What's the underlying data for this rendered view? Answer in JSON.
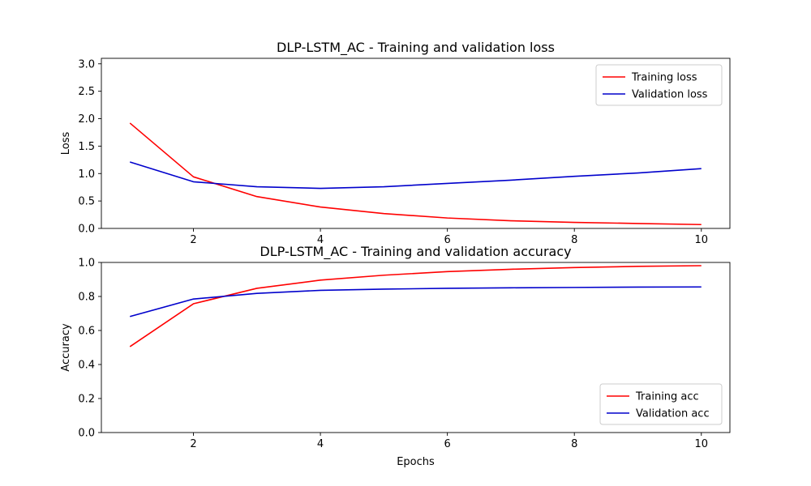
{
  "chart_data": [
    {
      "type": "line",
      "title": "DLP-LSTM_AC - Training and validation loss",
      "xlabel": "",
      "ylabel": "Loss",
      "xlim": [
        0.55,
        10.45
      ],
      "ylim": [
        0,
        3.1
      ],
      "xticks": [
        2,
        4,
        6,
        8,
        10
      ],
      "yticks": [
        0.0,
        0.5,
        1.0,
        1.5,
        2.0,
        2.5,
        3.0
      ],
      "grid": false,
      "legend_position": "upper right",
      "x": [
        1,
        2,
        3,
        4,
        5,
        6,
        7,
        8,
        9,
        10
      ],
      "series": [
        {
          "name": "Training loss",
          "color": "#ff0000",
          "values": [
            1.92,
            0.94,
            0.58,
            0.39,
            0.27,
            0.19,
            0.14,
            0.11,
            0.09,
            0.07
          ]
        },
        {
          "name": "Validation loss",
          "color": "#0000cc",
          "values": [
            1.21,
            0.85,
            0.76,
            0.73,
            0.76,
            0.82,
            0.88,
            0.95,
            1.01,
            1.09
          ]
        }
      ]
    },
    {
      "type": "line",
      "title": "DLP-LSTM_AC - Training and validation accuracy",
      "xlabel": "Epochs",
      "ylabel": "Accuracy",
      "xlim": [
        0.55,
        10.45
      ],
      "ylim": [
        0,
        1.0
      ],
      "xticks": [
        2,
        4,
        6,
        8,
        10
      ],
      "yticks": [
        0.0,
        0.2,
        0.4,
        0.6,
        0.8,
        1.0
      ],
      "grid": false,
      "legend_position": "lower right",
      "x": [
        1,
        2,
        3,
        4,
        5,
        6,
        7,
        8,
        9,
        10
      ],
      "series": [
        {
          "name": "Training acc",
          "color": "#ff0000",
          "values": [
            0.505,
            0.757,
            0.848,
            0.896,
            0.925,
            0.946,
            0.96,
            0.97,
            0.977,
            0.981
          ]
        },
        {
          "name": "Validation acc",
          "color": "#0000cc",
          "values": [
            0.682,
            0.785,
            0.818,
            0.836,
            0.843,
            0.848,
            0.851,
            0.853,
            0.855,
            0.856
          ]
        }
      ]
    }
  ]
}
